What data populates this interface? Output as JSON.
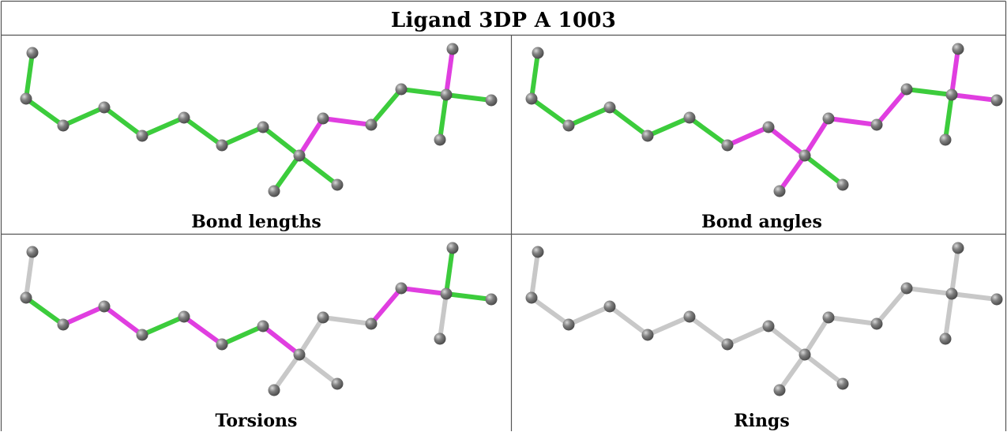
{
  "title": "Ligand 3DP A 1003",
  "colors": {
    "green": "#3ccc3c",
    "magenta": "#e03ee0",
    "grey": "#c8c8c8",
    "atom": "#808080",
    "border": "#555555"
  },
  "panels": [
    {
      "caption": "Bond lengths",
      "bond_colors": [
        "green",
        "green",
        "green",
        "green",
        "green",
        "green",
        "green",
        "green",
        "magenta",
        "magenta",
        "green",
        "green",
        "magenta",
        "green",
        "green",
        "green",
        "green",
        "green"
      ]
    },
    {
      "caption": "Bond angles",
      "bond_colors": [
        "green",
        "green",
        "green",
        "green",
        "green",
        "green",
        "magenta",
        "magenta",
        "magenta",
        "magenta",
        "magenta",
        "green",
        "magenta",
        "magenta",
        "green",
        "magenta",
        "green",
        "green"
      ]
    },
    {
      "caption": "Torsions",
      "bond_colors": [
        "grey",
        "green",
        "magenta",
        "magenta",
        "green",
        "magenta",
        "green",
        "magenta",
        "grey",
        "grey",
        "magenta",
        "magenta",
        "green",
        "green",
        "grey",
        "grey",
        "grey",
        "grey"
      ]
    },
    {
      "caption": "Rings",
      "bond_colors": [
        "grey",
        "grey",
        "grey",
        "grey",
        "grey",
        "grey",
        "grey",
        "grey",
        "grey",
        "grey",
        "grey",
        "grey",
        "grey",
        "grey",
        "grey",
        "grey",
        "grey",
        "grey"
      ]
    }
  ]
}
